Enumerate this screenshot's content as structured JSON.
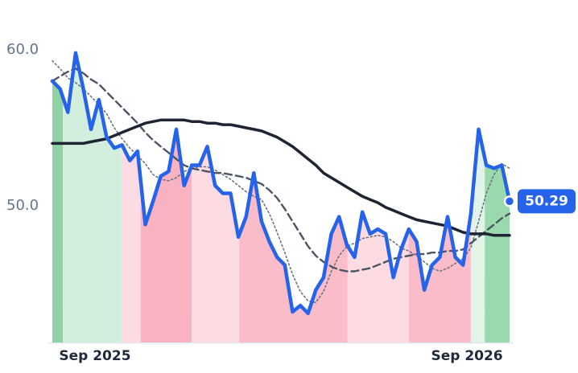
{
  "chart_data": {
    "type": "line",
    "x": [
      0,
      1,
      2,
      3,
      4,
      5,
      6,
      7,
      8,
      9,
      10,
      11,
      12,
      13,
      14,
      15,
      16,
      17,
      18,
      19,
      20,
      21,
      22,
      23,
      24,
      25,
      26,
      27,
      28,
      29,
      30,
      31,
      32,
      33,
      34,
      35,
      36,
      37,
      38,
      39,
      40,
      41,
      42,
      43,
      44,
      45,
      46,
      47,
      48,
      49,
      50,
      51,
      52,
      53,
      54,
      55,
      56,
      57,
      58,
      59
    ],
    "xlim": [
      0,
      59
    ],
    "xticks": [
      {
        "value": 5.5,
        "label": "Sep 2025"
      },
      {
        "value": 53.5,
        "label": "Sep 2026"
      }
    ],
    "ylim": [
      41.2,
      61.2
    ],
    "yticks": [
      {
        "value": 50,
        "label": "50.0"
      },
      {
        "value": 60,
        "label": "60.0"
      }
    ],
    "grid": false,
    "bands": [
      {
        "start": 0,
        "end": 1.35,
        "color": "#8fd3a5"
      },
      {
        "start": 1.35,
        "end": 9.0,
        "color": "#d3eedc"
      },
      {
        "start": 9.0,
        "end": 11.4,
        "color": "#fcdce2"
      },
      {
        "start": 11.4,
        "end": 18.0,
        "color": "#f9b3c0"
      },
      {
        "start": 18.0,
        "end": 24.1,
        "color": "#fcdce2"
      },
      {
        "start": 24.1,
        "end": 38.1,
        "color": "#f9bcc8"
      },
      {
        "start": 38.1,
        "end": 46.0,
        "color": "#fcdce2"
      },
      {
        "start": 46.0,
        "end": 54.0,
        "color": "#f9bcc8"
      },
      {
        "start": 54.0,
        "end": 55.8,
        "color": "#e2f3e8"
      },
      {
        "start": 55.8,
        "end": 59,
        "color": "#9ad8ae"
      }
    ],
    "series": [
      {
        "color": "#6b7280",
        "style": "dotted",
        "width": 1.6,
        "values": [
          59.3,
          58.8,
          58.2,
          57.9,
          57.5,
          57.0,
          56.5,
          55.9,
          55.0,
          54.3,
          53.7,
          53.2,
          52.7,
          52.0,
          51.7,
          51.6,
          51.8,
          52.2,
          52.4,
          52.5,
          52.5,
          52.3,
          52.0,
          51.7,
          51.3,
          50.9,
          50.6,
          50.4,
          49.5,
          48.3,
          47.0,
          45.6,
          44.5,
          43.9,
          43.8,
          44.5,
          45.8,
          46.8,
          47.4,
          47.6,
          47.9,
          48.0,
          48.1,
          48.0,
          47.7,
          47.3,
          47.1,
          46.8,
          46.4,
          46.0,
          45.8,
          46.0,
          46.3,
          46.6,
          47.3,
          49.0,
          50.8,
          52.0,
          52.7,
          52.4
        ]
      },
      {
        "color": "#4b5563",
        "style": "dashed",
        "width": 2.4,
        "values": [
          58.0,
          58.3,
          58.6,
          58.8,
          58.5,
          58.1,
          57.8,
          57.3,
          56.8,
          56.3,
          55.8,
          55.3,
          54.7,
          54.2,
          53.8,
          53.4,
          53.0,
          52.6,
          52.4,
          52.3,
          52.2,
          52.1,
          52.1,
          52.0,
          51.9,
          51.8,
          51.6,
          51.4,
          51.0,
          50.5,
          49.8,
          49.0,
          48.2,
          47.4,
          46.8,
          46.4,
          46.1,
          45.9,
          45.8,
          45.8,
          45.9,
          46.0,
          46.2,
          46.4,
          46.6,
          46.7,
          46.8,
          46.9,
          46.9,
          47.0,
          47.0,
          47.1,
          47.1,
          47.2,
          47.6,
          48.0,
          48.4,
          48.8,
          49.2,
          49.5
        ]
      },
      {
        "color": "#1e2433",
        "style": "solid",
        "width": 3.5,
        "values": [
          54.0,
          54.0,
          54.0,
          54.0,
          54.0,
          54.1,
          54.2,
          54.3,
          54.5,
          54.7,
          54.9,
          55.1,
          55.3,
          55.4,
          55.5,
          55.5,
          55.5,
          55.5,
          55.4,
          55.4,
          55.3,
          55.3,
          55.2,
          55.2,
          55.1,
          55.0,
          54.9,
          54.8,
          54.6,
          54.4,
          54.1,
          53.8,
          53.4,
          53.0,
          52.6,
          52.1,
          51.8,
          51.5,
          51.2,
          50.9,
          50.6,
          50.4,
          50.2,
          49.9,
          49.7,
          49.5,
          49.3,
          49.1,
          49.0,
          48.9,
          48.8,
          48.7,
          48.5,
          48.3,
          48.2,
          48.2,
          48.2,
          48.1,
          48.1,
          48.1
        ]
      },
      {
        "color": "#2563eb",
        "style": "solid",
        "width": 4.5,
        "values": [
          58.0,
          57.5,
          56.0,
          59.8,
          57.5,
          54.9,
          56.8,
          54.4,
          53.7,
          53.9,
          52.9,
          53.5,
          48.8,
          50.3,
          51.9,
          52.2,
          54.9,
          51.3,
          52.6,
          52.6,
          53.8,
          51.3,
          50.8,
          50.8,
          48.0,
          49.3,
          52.1,
          49.0,
          47.7,
          46.7,
          46.2,
          43.2,
          43.6,
          43.1,
          44.6,
          45.4,
          48.2,
          49.3,
          47.5,
          46.7,
          49.6,
          48.2,
          48.5,
          48.2,
          45.4,
          47.2,
          48.5,
          47.7,
          44.6,
          46.2,
          46.7,
          49.3,
          46.7,
          46.2,
          49.5,
          54.9,
          52.6,
          52.4,
          52.6,
          50.29
        ]
      }
    ]
  }
}
